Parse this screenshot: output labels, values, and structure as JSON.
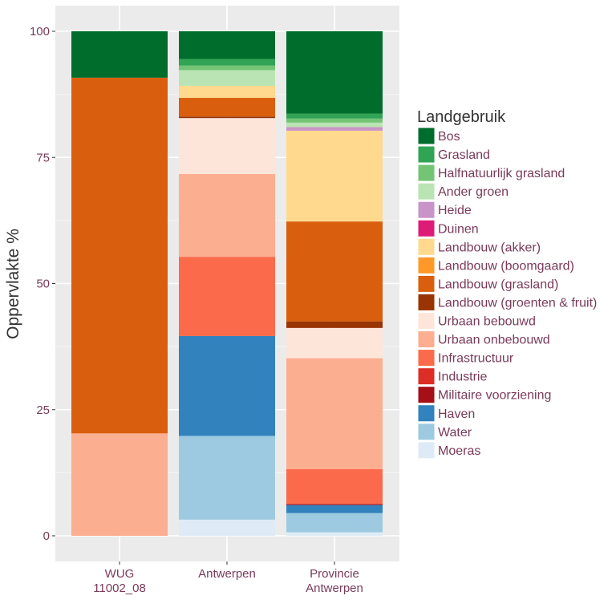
{
  "chart_data": {
    "type": "bar",
    "stacked": true,
    "ylabel": "Oppervlakte %",
    "ylim": [
      0,
      100
    ],
    "yticks": [
      0,
      25,
      50,
      75,
      100
    ],
    "grid": true,
    "legend_position": "right",
    "legend_title": "Landgebruik",
    "categories": [
      {
        "label": [
          "WUG",
          "11002_08"
        ]
      },
      {
        "label": [
          "Antwerpen"
        ]
      },
      {
        "label": [
          "Provincie",
          "Antwerpen"
        ]
      }
    ],
    "series": [
      {
        "name": "Bos",
        "color": "#006d2c",
        "values": [
          9.2,
          5.5,
          16.3
        ]
      },
      {
        "name": "Grasland",
        "color": "#31a354",
        "values": [
          0,
          1.3,
          1.0
        ]
      },
      {
        "name": "Halfnatuurlijk grasland",
        "color": "#74c476",
        "values": [
          0,
          0.9,
          0.8
        ]
      },
      {
        "name": "Ander groen",
        "color": "#bae4b3",
        "values": [
          0,
          3.1,
          0.9
        ]
      },
      {
        "name": "Heide",
        "color": "#c994c7",
        "values": [
          0,
          0,
          0.7
        ]
      },
      {
        "name": "Duinen",
        "color": "#dd1c77",
        "values": [
          0,
          0,
          0
        ]
      },
      {
        "name": "Landbouw (akker)",
        "color": "#fed98e",
        "values": [
          0,
          2.4,
          18.0
        ]
      },
      {
        "name": "Landbouw (boomgaard)",
        "color": "#fe9929",
        "values": [
          0,
          0,
          0
        ]
      },
      {
        "name": "Landbouw (grasland)",
        "color": "#d95f0e",
        "values": [
          70.5,
          3.7,
          19.8
        ]
      },
      {
        "name": "Landbouw (groenten & fruit)",
        "color": "#993404",
        "values": [
          0,
          0.3,
          1.3
        ]
      },
      {
        "name": "Urbaan bebouwd",
        "color": "#fee5d9",
        "values": [
          0,
          11.1,
          6.0
        ]
      },
      {
        "name": "Urbaan onbebouwd",
        "color": "#fcae91",
        "values": [
          20.3,
          16.4,
          22.0
        ]
      },
      {
        "name": "Infrastructuur",
        "color": "#fb6a4a",
        "values": [
          0,
          15.7,
          6.9
        ]
      },
      {
        "name": "Industrie",
        "color": "#de2d26",
        "values": [
          0,
          0,
          0
        ]
      },
      {
        "name": "Militaire voorziening",
        "color": "#a50f15",
        "values": [
          0,
          0,
          0.2
        ]
      },
      {
        "name": "Haven",
        "color": "#3182bd",
        "values": [
          0,
          19.8,
          1.6
        ]
      },
      {
        "name": "Water",
        "color": "#9ecae1",
        "values": [
          0,
          16.6,
          3.8
        ]
      },
      {
        "name": "Moeras",
        "color": "#deebf7",
        "values": [
          0,
          3.2,
          0.7
        ]
      }
    ]
  }
}
